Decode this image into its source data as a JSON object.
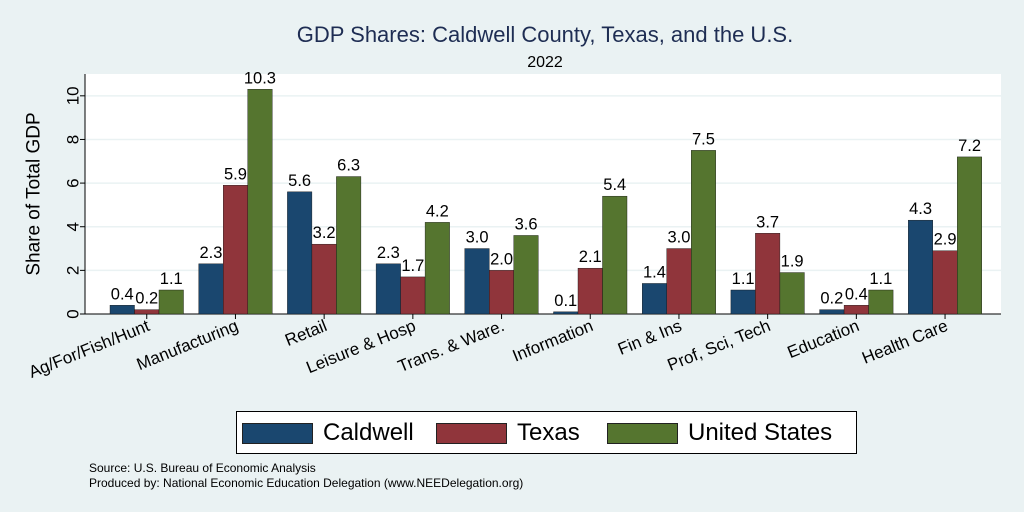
{
  "chart_data": {
    "type": "bar",
    "title": "GDP Shares: Caldwell County, Texas, and the U.S.",
    "subtitle": "2022",
    "ylabel": "Share of Total GDP",
    "xlabel": "",
    "ylim": [
      0,
      11
    ],
    "yticks": [
      0,
      2,
      4,
      6,
      8,
      10
    ],
    "grid": true,
    "legend_position": "bottom",
    "categories": [
      "Ag/For/Fish/Hunt",
      "Manufacturing",
      "Retail",
      "Leisure & Hosp",
      "Trans. & Ware.",
      "Information",
      "Fin & Ins",
      "Prof, Sci, Tech",
      "Education",
      "Health Care"
    ],
    "series": [
      {
        "name": "Caldwell",
        "color": "#1a476f",
        "values": [
          0.4,
          2.3,
          5.6,
          2.3,
          3.0,
          0.1,
          1.4,
          1.1,
          0.2,
          4.3
        ]
      },
      {
        "name": "Texas",
        "color": "#90353b",
        "values": [
          0.2,
          5.9,
          3.2,
          1.7,
          2.0,
          2.1,
          3.0,
          3.7,
          0.4,
          2.9
        ]
      },
      {
        "name": "United States",
        "color": "#55752f",
        "values": [
          1.1,
          10.3,
          6.3,
          4.2,
          3.6,
          5.4,
          7.5,
          1.9,
          1.1,
          7.2
        ]
      }
    ]
  },
  "source_line": "Source: U.S. Bureau of Economic Analysis",
  "produced_line": "Produced by: National Economic Education Delegation (www.NEEDelegation.org)"
}
